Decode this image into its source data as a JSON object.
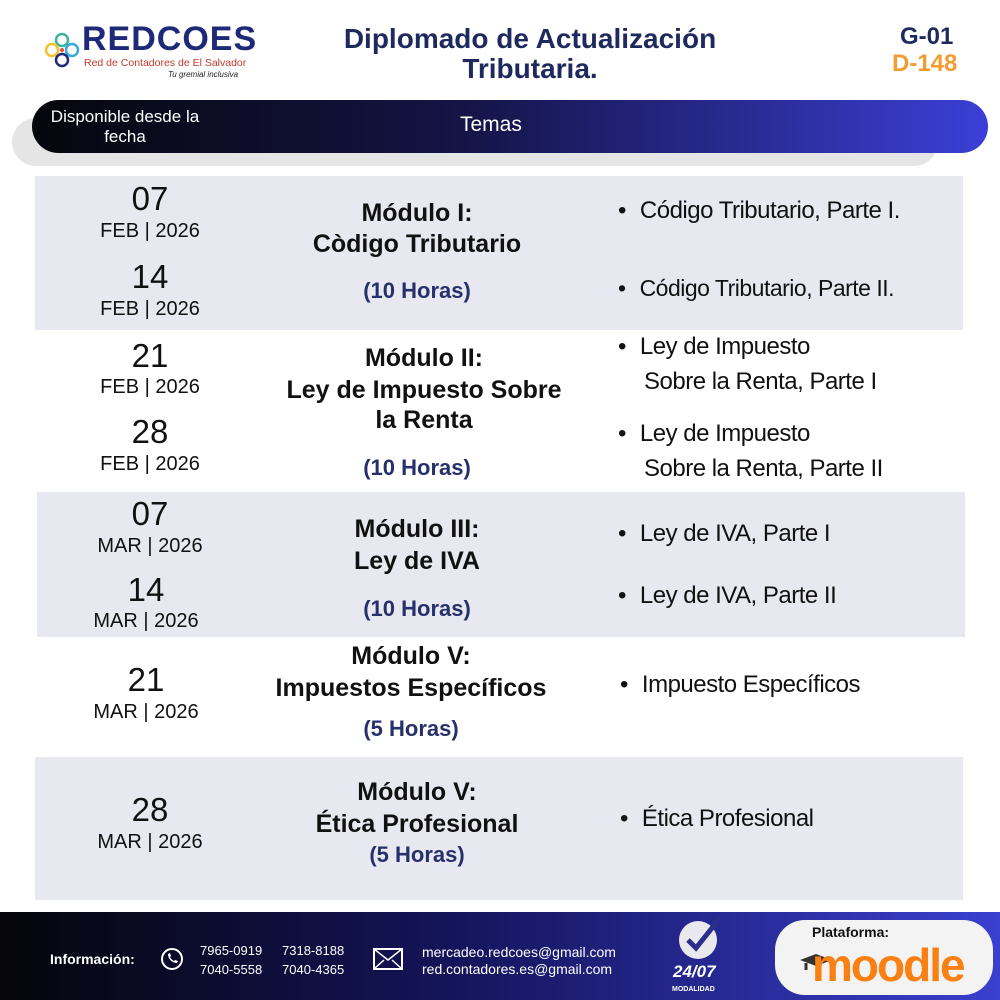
{
  "header": {
    "logo_name": "REDCOES",
    "logo_subtitle": "Red de Contadores de El Salvador",
    "logo_tagline": "Tu gremial inclusiva",
    "title": "Diplomado de Actualización Tributaria.",
    "code_group": "G-01",
    "code_number": "D-148"
  },
  "table_header": {
    "date_col": "Disponible desde la fecha",
    "topics_col": "Temas"
  },
  "modules": [
    {
      "dates": [
        {
          "day": "07",
          "month": "FEB | 2026"
        },
        {
          "day": "14",
          "month": "FEB | 2026"
        }
      ],
      "title": "Módulo I:",
      "name": "Còdigo Tributario",
      "hours": "(10 Horas)",
      "topics": [
        "Código Tributario, Parte I.",
        "Código Tributario, Parte II."
      ]
    },
    {
      "dates": [
        {
          "day": "21",
          "month": "FEB | 2026"
        },
        {
          "day": "28",
          "month": "FEB | 2026"
        }
      ],
      "title": "Módulo II:",
      "name": "Ley de Impuesto Sobre la Renta",
      "hours": "(10 Horas)",
      "topics": [
        [
          "Ley de Impuesto",
          "Sobre la Renta, Parte I"
        ],
        [
          "Ley de Impuesto",
          "Sobre la Renta, Parte II"
        ]
      ]
    },
    {
      "dates": [
        {
          "day": "07",
          "month": "MAR | 2026"
        },
        {
          "day": "14",
          "month": "MAR | 2026"
        }
      ],
      "title": "Módulo III:",
      "name": "Ley de IVA",
      "hours": "(10 Horas)",
      "topics": [
        "Ley de IVA, Parte I",
        "Ley de IVA, Parte II"
      ]
    },
    {
      "dates": [
        {
          "day": "21",
          "month": "MAR | 2026"
        }
      ],
      "title": "Módulo V:",
      "name": "Impuestos Específicos",
      "hours": "(5 Horas)",
      "topics": [
        "Impuesto Específicos"
      ]
    },
    {
      "dates": [
        {
          "day": "28",
          "month": "MAR | 2026"
        }
      ],
      "title": "Módulo V:",
      "name": "Ética Profesional",
      "hours": "(5 Horas)",
      "topics": [
        "Ética Profesional"
      ]
    }
  ],
  "footer": {
    "info_label": "Información:",
    "phones": [
      "7965-0919",
      "7318-8188",
      "7040-5558",
      "7040-4365"
    ],
    "emails": [
      "mercadeo.redcoes@gmail.com",
      "red.contadores.es@gmail.com"
    ],
    "availability": "24/07",
    "modality": "MODALIDAD",
    "platform_label": "Plataforma:",
    "platform_name": "moodle"
  },
  "colors": {
    "navy": "#1e2a5e",
    "orange": "#f39c32",
    "row_grey": "#e8e9f0",
    "moodle_orange": "#f98012"
  }
}
